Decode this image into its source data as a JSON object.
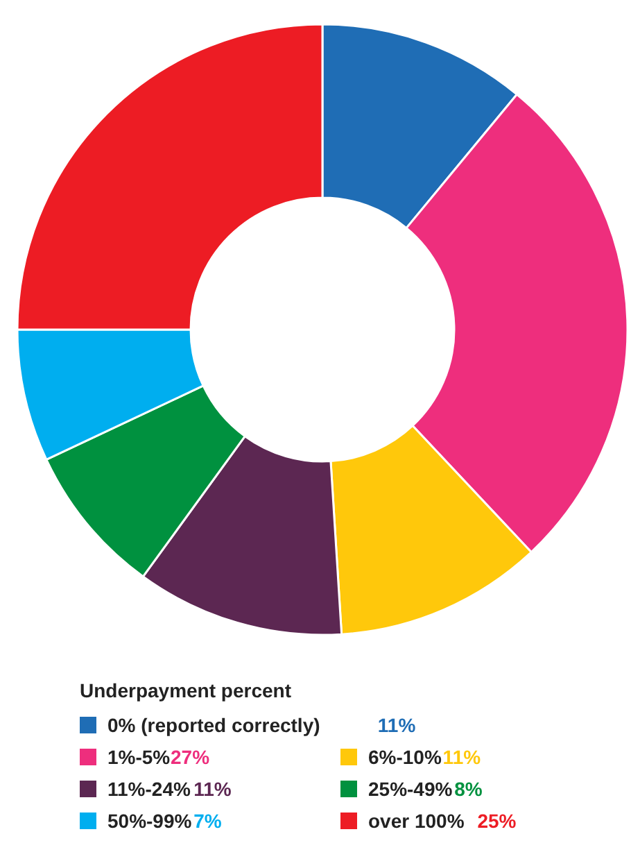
{
  "chart_data": {
    "type": "donut",
    "legend_title": "Underpayment percent",
    "legend": "bottom",
    "categories": [
      "0% (reported correctly)",
      "1%-5%",
      "6%-10%",
      "11%-24%",
      "25%-49%",
      "50%-99%",
      "over 100%"
    ],
    "values": [
      11,
      27,
      11,
      11,
      8,
      7,
      25
    ],
    "value_labels": [
      "11%",
      "27%",
      "11%",
      "11%",
      "8%",
      "7%",
      "25%"
    ],
    "colors": [
      "#1f6db5",
      "#ee2e7d",
      "#ffc80b",
      "#5c2752",
      "#00913f",
      "#00aeef",
      "#ed1c24"
    ]
  }
}
